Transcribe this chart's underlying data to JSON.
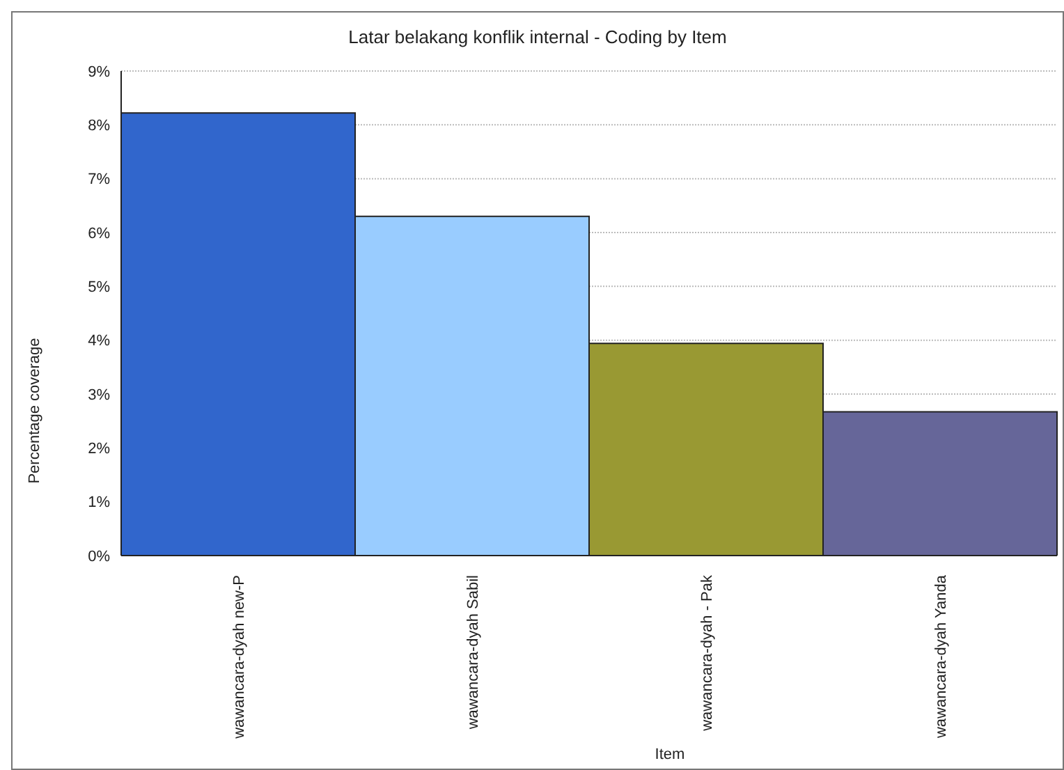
{
  "chart_data": {
    "type": "bar",
    "title": "Latar belakang konflik internal - Coding by Item",
    "xlabel": "Item",
    "ylabel": "Percentage coverage",
    "categories": [
      "wawancara-dyah new-P",
      "wawancara-dyah Sabil",
      "wawancara-dyah - Pak",
      "wawancara-dyah Yanda"
    ],
    "values": [
      8.22,
      6.3,
      3.94,
      2.67
    ],
    "colors": [
      "#3166cc",
      "#99ccff",
      "#999933",
      "#666699"
    ],
    "ylim": [
      0,
      9
    ],
    "yticks": [
      {
        "value": 0,
        "label": "0%"
      },
      {
        "value": 1,
        "label": "1%"
      },
      {
        "value": 2,
        "label": "2%"
      },
      {
        "value": 3,
        "label": "3%"
      },
      {
        "value": 4,
        "label": "4%"
      },
      {
        "value": 5,
        "label": "5%"
      },
      {
        "value": 6,
        "label": "6%"
      },
      {
        "value": 7,
        "label": "7%"
      },
      {
        "value": 8,
        "label": "8%"
      },
      {
        "value": 9,
        "label": "9%"
      }
    ],
    "grid": "y",
    "legend": false
  }
}
